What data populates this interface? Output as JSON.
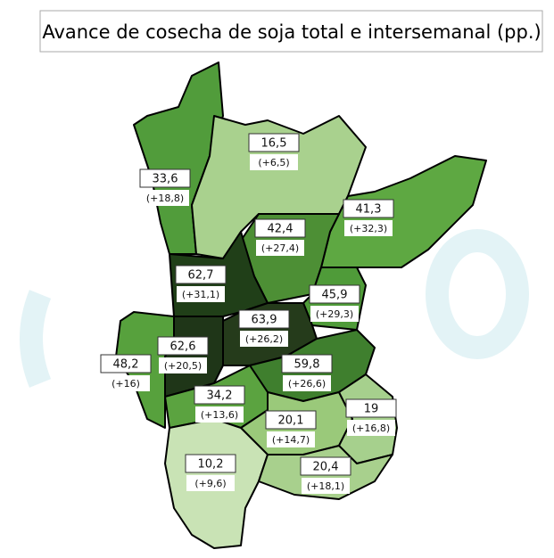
{
  "title": "Avance de cosecha de soja total e intersemanal (pp.)",
  "regions": [
    {
      "total": "33,6",
      "change": "(+18,8)",
      "color": "#519c3b"
    },
    {
      "total": "16,5",
      "change": "(+6,5)",
      "color": "#a9d18e"
    },
    {
      "total": "41,3",
      "change": "(+32,3)",
      "color": "#5ea842"
    },
    {
      "total": "42,4",
      "change": "(+27,4)",
      "color": "#4d8f35"
    },
    {
      "total": "62,7",
      "change": "(+31,1)",
      "color": "#203f18"
    },
    {
      "total": "45,9",
      "change": "(+29,3)",
      "color": "#4f9b39"
    },
    {
      "total": "63,9",
      "change": "(+26,2)",
      "color": "#253b1b"
    },
    {
      "total": "62,6",
      "change": "(+20,5)",
      "color": "#1f3618"
    },
    {
      "total": "48,2",
      "change": "(+16)",
      "color": "#57a13d"
    },
    {
      "total": "59,8",
      "change": "(+26,6)",
      "color": "#3f7f2e"
    },
    {
      "total": "34,2",
      "change": "(+13,6)",
      "color": "#5ba340"
    },
    {
      "total": "20,1",
      "change": "(+14,7)",
      "color": "#9ac97a"
    },
    {
      "total": "19",
      "change": "(+16,8)",
      "color": "#a6d08d"
    },
    {
      "total": "10,2",
      "change": "(+9,6)",
      "color": "#c9e3b5"
    },
    {
      "total": "20,4",
      "change": "(+18,1)",
      "color": "#a8d08d"
    }
  ]
}
